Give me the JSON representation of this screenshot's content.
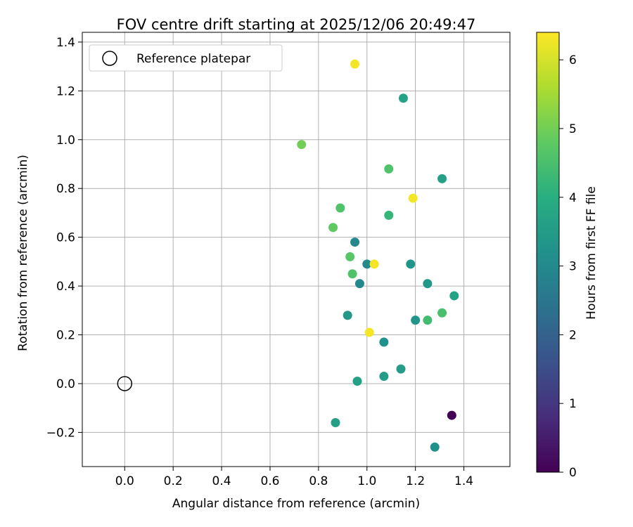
{
  "chart_data": {
    "type": "scatter",
    "title": "FOV centre drift starting at 2025/12/06 20:49:47",
    "xlabel": "Angular distance from reference (arcmin)",
    "ylabel": "Rotation from reference (arcmin)",
    "xlim": [
      -0.175,
      1.59
    ],
    "ylim": [
      -0.34,
      1.44
    ],
    "x_ticks": [
      0.0,
      0.2,
      0.4,
      0.6,
      0.8,
      1.0,
      1.2,
      1.4
    ],
    "x_tick_labels": [
      "0.0",
      "0.2",
      "0.4",
      "0.6",
      "0.8",
      "1.0",
      "1.2",
      "1.4"
    ],
    "y_ticks": [
      -0.2,
      0.0,
      0.2,
      0.4,
      0.6,
      0.8,
      1.0,
      1.2,
      1.4
    ],
    "y_tick_labels": [
      "−0.2",
      "0.0",
      "0.2",
      "0.4",
      "0.6",
      "0.8",
      "1.0",
      "1.2",
      "1.4"
    ],
    "grid": true,
    "colormap": "viridis",
    "colorbar": {
      "label": "Hours from first FF file",
      "range": [
        0,
        6.4
      ],
      "ticks": [
        0,
        1,
        2,
        3,
        4,
        5,
        6
      ],
      "tick_labels": [
        "0",
        "1",
        "2",
        "3",
        "4",
        "5",
        "6"
      ]
    },
    "legend": {
      "placement": "upper-left",
      "entries": [
        {
          "label": "Reference platepar",
          "marker": "open-circle",
          "x": 0.0,
          "y": 0.0
        }
      ]
    },
    "points": [
      {
        "x": 1.35,
        "y": -0.13,
        "hours": 0.0
      },
      {
        "x": 1.28,
        "y": -0.26,
        "hours": 3.2
      },
      {
        "x": 0.87,
        "y": -0.16,
        "hours": 3.6
      },
      {
        "x": 0.96,
        "y": 0.01,
        "hours": 3.6
      },
      {
        "x": 1.07,
        "y": 0.03,
        "hours": 3.5
      },
      {
        "x": 1.14,
        "y": 0.06,
        "hours": 3.5
      },
      {
        "x": 1.07,
        "y": 0.17,
        "hours": 3.2
      },
      {
        "x": 1.01,
        "y": 0.21,
        "hours": 6.3
      },
      {
        "x": 0.92,
        "y": 0.28,
        "hours": 3.4
      },
      {
        "x": 1.2,
        "y": 0.26,
        "hours": 3.3
      },
      {
        "x": 1.25,
        "y": 0.26,
        "hours": 4.4
      },
      {
        "x": 1.31,
        "y": 0.29,
        "hours": 4.5
      },
      {
        "x": 1.36,
        "y": 0.36,
        "hours": 3.7
      },
      {
        "x": 1.25,
        "y": 0.41,
        "hours": 3.4
      },
      {
        "x": 0.97,
        "y": 0.41,
        "hours": 3.0
      },
      {
        "x": 0.94,
        "y": 0.45,
        "hours": 4.6
      },
      {
        "x": 1.18,
        "y": 0.49,
        "hours": 3.3
      },
      {
        "x": 1.0,
        "y": 0.49,
        "hours": 3.0
      },
      {
        "x": 1.03,
        "y": 0.49,
        "hours": 6.3
      },
      {
        "x": 0.93,
        "y": 0.52,
        "hours": 4.7
      },
      {
        "x": 0.95,
        "y": 0.58,
        "hours": 3.0
      },
      {
        "x": 0.86,
        "y": 0.64,
        "hours": 4.8
      },
      {
        "x": 1.09,
        "y": 0.69,
        "hours": 4.2
      },
      {
        "x": 0.89,
        "y": 0.72,
        "hours": 4.6
      },
      {
        "x": 1.19,
        "y": 0.76,
        "hours": 6.3
      },
      {
        "x": 1.31,
        "y": 0.84,
        "hours": 3.6
      },
      {
        "x": 1.09,
        "y": 0.88,
        "hours": 4.6
      },
      {
        "x": 0.73,
        "y": 0.98,
        "hours": 5.0
      },
      {
        "x": 1.15,
        "y": 1.17,
        "hours": 3.7
      },
      {
        "x": 0.95,
        "y": 1.31,
        "hours": 6.3
      }
    ]
  }
}
